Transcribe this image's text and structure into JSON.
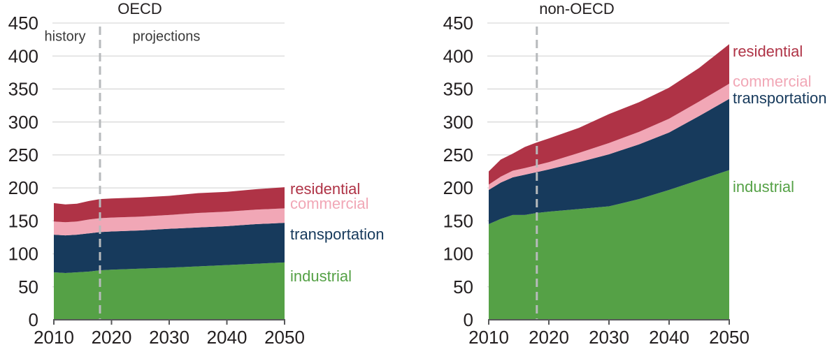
{
  "figure": {
    "background": "#ffffff",
    "text_color": "#231f20",
    "gridline_color": "#d9d9d9",
    "axis_color": "#58595b",
    "dashed_line_color": "#b7babc"
  },
  "chart_data": [
    {
      "type": "area",
      "stacked": true,
      "title": "OECD",
      "annotations": {
        "history": "history",
        "projections": "projections"
      },
      "history_boundary": 2018,
      "grid": "horizontal",
      "legend_position": "right-of-plot",
      "ylim": [
        0,
        450
      ],
      "yticks": [
        0,
        50,
        100,
        150,
        200,
        250,
        300,
        350,
        400,
        450
      ],
      "xticks": [
        2010,
        2020,
        2030,
        2040,
        2050
      ],
      "xlabel": "",
      "ylabel": "",
      "x": [
        2010,
        2012,
        2014,
        2016,
        2018,
        2020,
        2025,
        2030,
        2035,
        2040,
        2045,
        2050
      ],
      "series": [
        {
          "name": "industrial",
          "color": "#55a146",
          "values": [
            72,
            71,
            72,
            73,
            75,
            76,
            77.5,
            79,
            81,
            83,
            85,
            87
          ]
        },
        {
          "name": "transportation",
          "color": "#173a5c",
          "values": [
            57,
            57,
            57,
            58,
            58,
            58,
            58,
            59,
            59,
            59,
            60,
            60
          ]
        },
        {
          "name": "commercial",
          "color": "#f1a7b6",
          "values": [
            20,
            20,
            20,
            21,
            21,
            21,
            21,
            21,
            22,
            22,
            22,
            22
          ]
        },
        {
          "name": "residential",
          "color": "#af3346",
          "values": [
            28,
            27,
            27,
            28,
            29,
            29,
            29,
            29,
            30,
            30,
            31,
            32
          ]
        }
      ]
    },
    {
      "type": "area",
      "stacked": true,
      "title": "non-OECD",
      "history_boundary": 2018,
      "grid": "horizontal",
      "legend_position": "right-of-plot",
      "ylim": [
        0,
        450
      ],
      "yticks": [
        0,
        50,
        100,
        150,
        200,
        250,
        300,
        350,
        400,
        450
      ],
      "xticks": [
        2010,
        2020,
        2030,
        2040,
        2050
      ],
      "xlabel": "",
      "ylabel": "",
      "x": [
        2010,
        2012,
        2014,
        2016,
        2018,
        2020,
        2025,
        2030,
        2035,
        2040,
        2045,
        2050
      ],
      "series": [
        {
          "name": "industrial",
          "color": "#55a146",
          "values": [
            145,
            153,
            159,
            159,
            162,
            164,
            168,
            172,
            183,
            197,
            212,
            227
          ]
        },
        {
          "name": "transportation",
          "color": "#173a5c",
          "values": [
            52,
            55,
            57,
            61,
            62,
            64,
            71,
            79,
            83,
            87,
            97,
            108
          ]
        },
        {
          "name": "commercial",
          "color": "#f1a7b6",
          "values": [
            8,
            9,
            10,
            10,
            10.5,
            11,
            14,
            17,
            19,
            21,
            22,
            23
          ]
        },
        {
          "name": "residential",
          "color": "#af3346",
          "values": [
            20,
            26,
            26,
            32,
            34.5,
            36,
            38,
            44,
            45,
            47,
            51,
            60
          ]
        }
      ]
    }
  ]
}
